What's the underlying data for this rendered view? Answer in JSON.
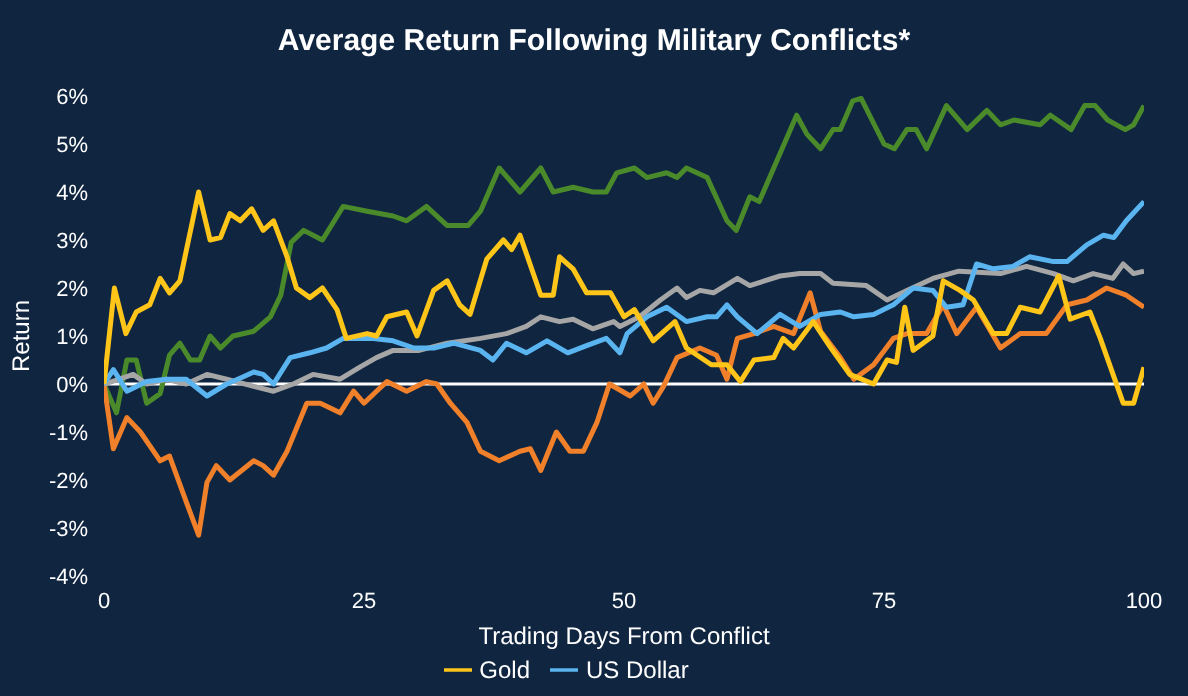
{
  "chart_data": {
    "type": "line",
    "title": "Average Return Following Military Conflicts*",
    "xlabel": "Trading Days From Conflict",
    "ylabel": "Return",
    "xlim": [
      0,
      100
    ],
    "xticks": [
      0,
      25,
      50,
      75,
      100
    ],
    "ylim": [
      -4,
      6
    ],
    "yticks": [
      {
        "value": -4,
        "label": "-4%"
      },
      {
        "value": -3,
        "label": "-3%"
      },
      {
        "value": -2,
        "label": "-2%"
      },
      {
        "value": -1,
        "label": "-1%"
      },
      {
        "value": 0,
        "label": "0%"
      },
      {
        "value": 1,
        "label": "1%"
      },
      {
        "value": 2,
        "label": "2%"
      },
      {
        "value": 3,
        "label": "3%"
      },
      {
        "value": 4,
        "label": "4%"
      },
      {
        "value": 5,
        "label": "5%"
      },
      {
        "value": 6,
        "label": "6%"
      }
    ],
    "grid": false,
    "legend": "bottom",
    "marker": "none",
    "line_style": "solid",
    "ref_lines": [
      {
        "axis": "y",
        "value": 0,
        "label": null,
        "color": "#ffffff"
      }
    ],
    "series": [
      {
        "color": "#4a8a2a",
        "x": [
          0,
          1.2,
          2.2,
          3.1,
          4.1,
          5.4,
          6.3,
          7.3,
          8.3,
          9.2,
          10.2,
          11.2,
          12.4,
          14.4,
          16,
          17,
          18,
          19.2,
          21,
          23,
          25.3,
          27.8,
          29.1,
          31,
          33,
          35,
          36.2,
          38,
          40,
          42,
          43.2,
          45.1,
          47,
          48.3,
          49.3,
          51,
          52.2,
          54.1,
          55.1,
          56,
          58,
          59.9,
          60.8,
          62.1,
          63,
          64.4,
          66.6,
          67.6,
          68.9,
          70.1,
          70.8,
          72,
          72.8,
          75,
          76,
          77.2,
          78.1,
          79.1,
          81,
          83,
          84.9,
          86.2,
          87.5,
          90,
          91,
          93,
          94.3,
          95.3,
          96.5,
          98.2,
          99,
          100
        ],
        "values": [
          0,
          -0.6,
          0.5,
          0.5,
          -0.4,
          -0.2,
          0.6,
          0.85,
          0.5,
          0.5,
          1,
          0.75,
          1,
          1.1,
          1.4,
          1.85,
          2.95,
          3.2,
          3,
          3.7,
          3.6,
          3.5,
          3.4,
          3.7,
          3.3,
          3.3,
          3.6,
          4.5,
          4,
          4.5,
          4,
          4.1,
          4,
          4,
          4.4,
          4.5,
          4.3,
          4.4,
          4.3,
          4.5,
          4.3,
          3.4,
          3.2,
          3.9,
          3.8,
          4.5,
          5.6,
          5.2,
          4.9,
          5.3,
          5.3,
          5.9,
          5.95,
          5,
          4.9,
          5.3,
          5.3,
          4.9,
          5.8,
          5.3,
          5.7,
          5.4,
          5.5,
          5.4,
          5.6,
          5.3,
          5.8,
          5.8,
          5.5,
          5.3,
          5.4,
          5.8
        ]
      },
      {
        "color": "#f0802a",
        "x": [
          0,
          0.9,
          2.2,
          3.5,
          5.4,
          6.3,
          7.9,
          9.1,
          9.9,
          10.8,
          12.1,
          14.4,
          15.3,
          16.3,
          17.6,
          19.5,
          20.8,
          22.7,
          24,
          25,
          26.2,
          27.2,
          29.1,
          31,
          32,
          33.3,
          34.9,
          36.2,
          38,
          40,
          41,
          42,
          43.5,
          44.8,
          46.1,
          47.4,
          48.6,
          50.6,
          51.9,
          52.8,
          53.8,
          55.1,
          57.3,
          58.9,
          59.9,
          60.9,
          62.5,
          64.4,
          66.3,
          67.9,
          68.9,
          70.8,
          72.1,
          74,
          75.9,
          77.2,
          79.1,
          80.7,
          82,
          83.9,
          86.2,
          88.1,
          90.6,
          92.6,
          94.5,
          96.4,
          98.3,
          100
        ],
        "values": [
          0,
          -1.35,
          -0.7,
          -1,
          -1.6,
          -1.5,
          -2.45,
          -3.15,
          -2.05,
          -1.7,
          -2,
          -1.6,
          -1.7,
          -1.9,
          -1.4,
          -0.4,
          -0.4,
          -0.6,
          -0.15,
          -0.4,
          -0.15,
          0.05,
          -0.15,
          0.05,
          0,
          -0.4,
          -0.8,
          -1.4,
          -1.6,
          -1.4,
          -1.35,
          -1.8,
          -1,
          -1.4,
          -1.4,
          -0.8,
          0,
          -0.25,
          0,
          -0.4,
          -0.05,
          0.55,
          0.75,
          0.6,
          0.1,
          0.95,
          1.05,
          1.2,
          1.05,
          1.9,
          1.1,
          0.55,
          0.1,
          0.4,
          0.95,
          1.05,
          1.05,
          1.65,
          1.05,
          1.6,
          0.75,
          1.05,
          1.05,
          1.65,
          1.75,
          2,
          1.85,
          1.6
        ]
      },
      {
        "color": "#a6a6a6",
        "x": [
          0,
          1.5,
          2.8,
          4.1,
          6,
          7.9,
          9.9,
          11.8,
          14.4,
          16.3,
          18.2,
          20.1,
          22.7,
          24.6,
          26.2,
          27.8,
          30.3,
          33,
          36.2,
          38.7,
          40.6,
          42,
          43.8,
          45.1,
          47,
          49,
          49.6,
          51.5,
          53.5,
          55.1,
          56,
          57.3,
          58.6,
          60.9,
          62.1,
          65,
          66.9,
          68.9,
          70.1,
          73.3,
          75.3,
          77.2,
          79.7,
          82.2,
          86.2,
          88.7,
          91.3,
          93.2,
          95.1,
          97,
          98,
          99,
          100
        ],
        "values": [
          0,
          0.1,
          0.2,
          0,
          0.1,
          0,
          0.2,
          0.1,
          -0.05,
          -0.15,
          0,
          0.2,
          0.1,
          0.35,
          0.55,
          0.7,
          0.7,
          0.85,
          0.95,
          1.05,
          1.2,
          1.4,
          1.3,
          1.35,
          1.15,
          1.3,
          1.2,
          1.4,
          1.75,
          2,
          1.8,
          1.95,
          1.9,
          2.2,
          2.05,
          2.25,
          2.3,
          2.3,
          2.1,
          2.05,
          1.75,
          1.95,
          2.2,
          2.35,
          2.3,
          2.45,
          2.3,
          2.15,
          2.3,
          2.2,
          2.5,
          2.3,
          2.35
        ]
      },
      {
        "name": "US Dollar",
        "color": "#5ab4f0",
        "x": [
          0,
          0.9,
          2.2,
          4.1,
          6,
          7.9,
          9.9,
          11.8,
          13.4,
          14.4,
          15.3,
          16.3,
          17.9,
          19.8,
          21.4,
          23,
          24.6,
          25.9,
          27.8,
          29.8,
          31.7,
          33.6,
          36.2,
          37.4,
          38.7,
          40.6,
          42.6,
          44.6,
          46.4,
          48.3,
          49.6,
          50.3,
          52.2,
          54.1,
          56,
          58,
          58.9,
          59.9,
          60.9,
          62.8,
          65,
          66.9,
          68.9,
          70.8,
          72.1,
          74,
          75.9,
          77.8,
          79.7,
          81,
          82.6,
          83.9,
          85.5,
          87.4,
          89,
          91.3,
          92.6,
          94.5,
          96.1,
          97.1,
          98.3,
          100
        ],
        "values": [
          0,
          0.3,
          -0.15,
          0.05,
          0.1,
          0.1,
          -0.25,
          0,
          0.15,
          0.25,
          0.2,
          0,
          0.55,
          0.65,
          0.75,
          0.95,
          0.95,
          0.95,
          0.9,
          0.75,
          0.75,
          0.85,
          0.7,
          0.5,
          0.85,
          0.65,
          0.9,
          0.65,
          0.8,
          0.95,
          0.65,
          1.05,
          1.4,
          1.6,
          1.3,
          1.4,
          1.4,
          1.65,
          1.4,
          1.05,
          1.45,
          1.2,
          1.45,
          1.5,
          1.4,
          1.45,
          1.65,
          2,
          1.95,
          1.6,
          1.65,
          2.5,
          2.4,
          2.45,
          2.65,
          2.55,
          2.55,
          2.9,
          3.1,
          3.05,
          3.4,
          3.8
        ]
      },
      {
        "name": "Gold",
        "color": "#ffc619",
        "x": [
          0,
          1,
          2.1,
          3.1,
          4.4,
          5.4,
          6.3,
          7.3,
          9.1,
          10.2,
          11.2,
          12.1,
          13.1,
          14.2,
          15.3,
          16.3,
          17.6,
          18.5,
          19.8,
          21,
          22.4,
          23.3,
          25.3,
          26.2,
          27.2,
          29.1,
          30.1,
          31.7,
          33,
          34.2,
          35.2,
          36.8,
          38.4,
          39.2,
          40,
          42,
          43.2,
          43.8,
          45.1,
          46.4,
          48.7,
          50,
          51,
          52.8,
          54.9,
          56,
          58.4,
          59.9,
          61.2,
          62.5,
          64.4,
          65.3,
          66.3,
          68.2,
          69.9,
          71.7,
          74,
          75.3,
          76.2,
          77,
          77.8,
          79.7,
          80.7,
          82.3,
          83.6,
          85.5,
          86.8,
          88.1,
          90,
          91.8,
          92.9,
          94.8,
          95.8,
          98,
          99,
          100
        ],
        "values": [
          0,
          2,
          1.05,
          1.5,
          1.65,
          2.2,
          1.9,
          2.15,
          4,
          3,
          3.05,
          3.55,
          3.4,
          3.65,
          3.2,
          3.4,
          2.65,
          2,
          1.8,
          2,
          1.55,
          0.95,
          1.05,
          1,
          1.4,
          1.5,
          1,
          1.95,
          2.15,
          1.65,
          1.45,
          2.6,
          3,
          2.8,
          3.1,
          1.85,
          1.85,
          2.65,
          2.4,
          1.9,
          1.9,
          1.4,
          1.55,
          0.9,
          1.3,
          0.75,
          0.4,
          0.4,
          0.05,
          0.5,
          0.55,
          0.95,
          0.75,
          1.3,
          0.75,
          0.2,
          0,
          0.5,
          0.45,
          1.6,
          0.7,
          1,
          2.15,
          1.95,
          1.75,
          1.05,
          1.05,
          1.6,
          1.5,
          2.25,
          1.35,
          1.5,
          0.95,
          -0.4,
          -0.4,
          0.35
        ]
      }
    ]
  }
}
